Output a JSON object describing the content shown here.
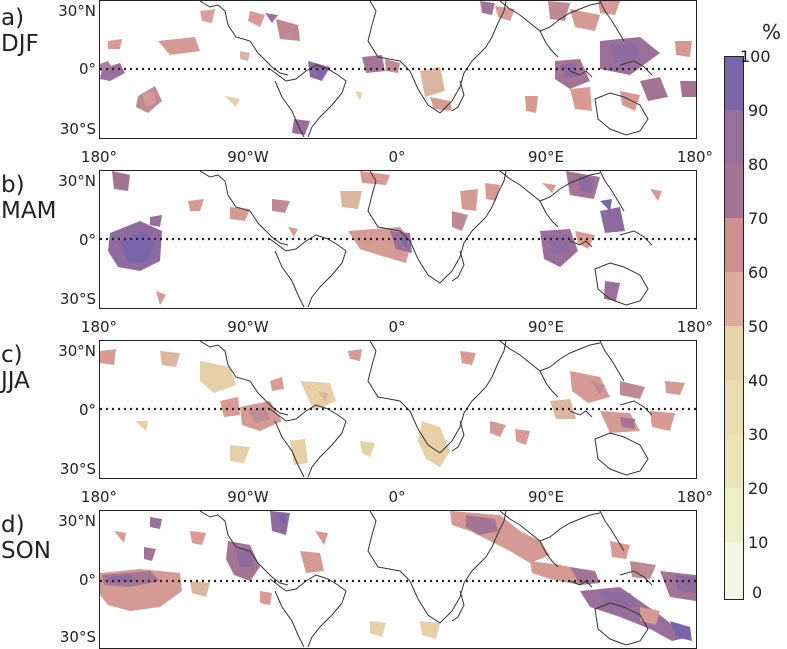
{
  "panels": [
    {
      "id": "djf",
      "label_letter": "a)",
      "label_season": "DJF"
    },
    {
      "id": "mam",
      "label_letter": "b)",
      "label_season": "MAM"
    },
    {
      "id": "jja",
      "label_letter": "c)",
      "label_season": "JJA"
    },
    {
      "id": "son",
      "label_letter": "d)",
      "label_season": "SON"
    }
  ],
  "lat_labels": [
    "30°N",
    "0°",
    "30°S"
  ],
  "lon_labels": [
    "180°",
    "90°W",
    "0°",
    "90°E",
    "180°"
  ],
  "colorbar": {
    "unit": "%",
    "ticks": [
      "100",
      "90",
      "80",
      "70",
      "60",
      "50",
      "40",
      "30",
      "20",
      "10",
      "0"
    ],
    "colors": [
      "#7a64aa",
      "#8f6a9e",
      "#a47495",
      "#bf8090",
      "#d89a92",
      "#e4b39d",
      "#e7cfa8",
      "#e8dcb0",
      "#e9e7b8",
      "#eef0cc",
      "#f5f7e6"
    ]
  }
}
